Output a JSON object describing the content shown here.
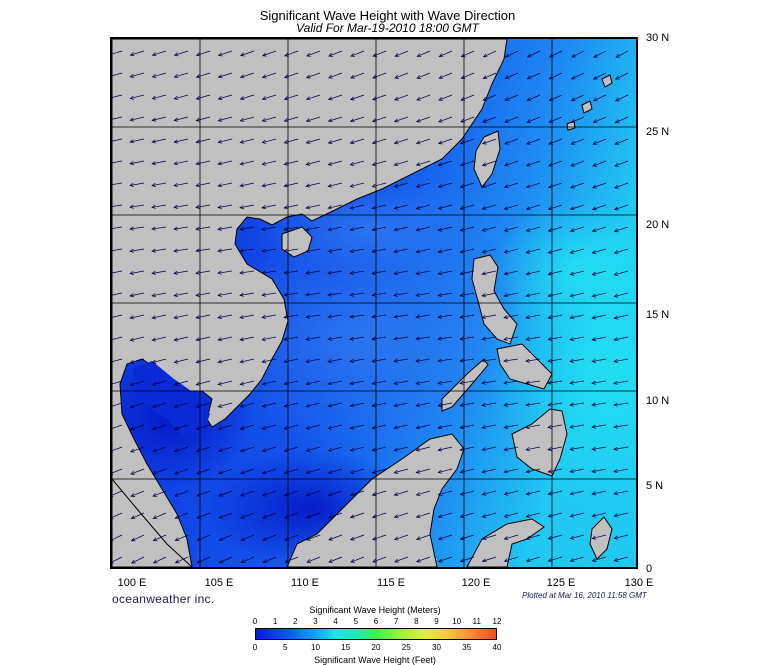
{
  "title": "Significant Wave Height with Wave Direction",
  "subtitle": "Valid For Mar-19-2010 18:00 GMT",
  "lat_labels": [
    "30 N",
    "25 N",
    "20 N",
    "15 N",
    "10 N",
    "5 N",
    "0"
  ],
  "lon_labels": [
    "100 E",
    "105 E",
    "110 E",
    "115 E",
    "120 E",
    "125 E",
    "130 E"
  ],
  "brand": "oceanweather inc.",
  "plotted": "Plotted at Mar 16, 2010 11:58 GMT",
  "colorbar": {
    "meters_title": "Significant Wave Height (Meters)",
    "feet_title": "Significant Wave Height (Feet)",
    "meters_ticks": [
      "0",
      "1",
      "2",
      "3",
      "4",
      "5",
      "6",
      "7",
      "8",
      "9",
      "10",
      "11",
      "12"
    ],
    "feet_ticks": [
      "0",
      "5",
      "10",
      "15",
      "20",
      "25",
      "30",
      "35",
      "40"
    ]
  },
  "colors": {
    "land": "#c0c0c0",
    "sea_deep": "#0a2ad8",
    "sea_mid": "#1f6af2",
    "sea_high": "#1fd2f0",
    "arrow": "#000044"
  }
}
